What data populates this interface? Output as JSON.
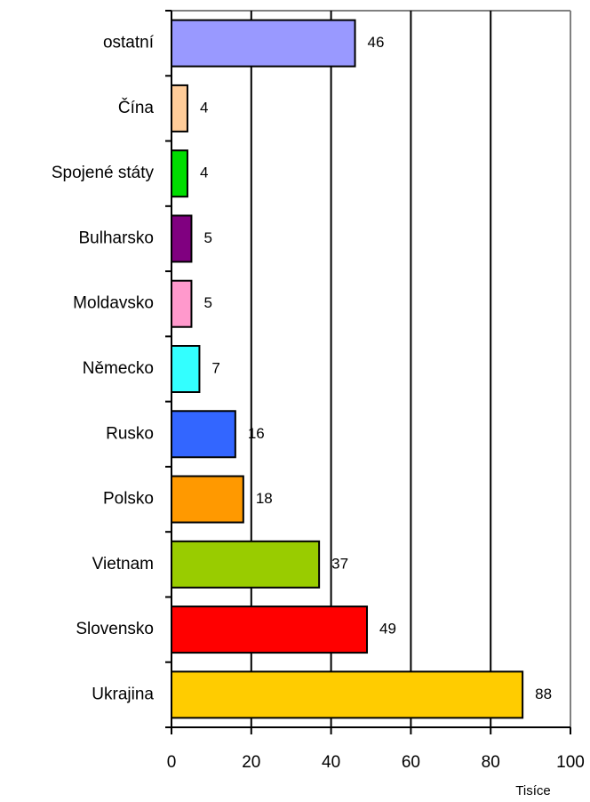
{
  "chart_data": {
    "type": "bar",
    "orientation": "horizontal",
    "categories": [
      "ostatní",
      "Čína",
      "Spojené státy",
      "Bulharsko",
      "Moldavsko",
      "Německo",
      "Rusko",
      "Polsko",
      "Vietnam",
      "Slovensko",
      "Ukrajina"
    ],
    "values": [
      46,
      4,
      4,
      5,
      5,
      7,
      16,
      18,
      37,
      49,
      88
    ],
    "colors": [
      "#9999ff",
      "#ffcc99",
      "#00dd00",
      "#800080",
      "#ff99cc",
      "#33ffff",
      "#3366ff",
      "#ff9900",
      "#99cc00",
      "#ff0000",
      "#ffcc00"
    ],
    "xlabel": "Tisíce",
    "xlim": [
      0,
      100
    ],
    "xticks": [
      0,
      20,
      40,
      60,
      80,
      100
    ],
    "grid": true
  }
}
